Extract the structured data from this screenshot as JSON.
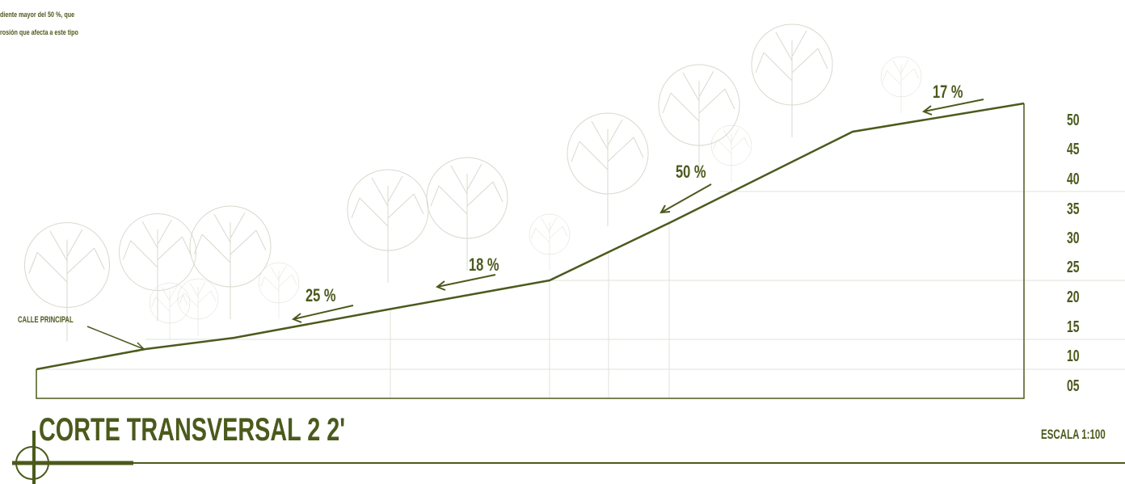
{
  "note": [
    "diente mayor del 50 %, que",
    "rosión que afecta a este tipo"
  ],
  "street_label": "CALLE PRINCIPAL",
  "slopes": [
    "25 %",
    "18 %",
    "50 %",
    "17 %"
  ],
  "elevations": [
    "50",
    "45",
    "40",
    "35",
    "30",
    "25",
    "20",
    "15",
    "10",
    "05"
  ],
  "title": "CORTE TRANSVERSAL  2 2'",
  "scale": "ESCALA 1:100"
}
